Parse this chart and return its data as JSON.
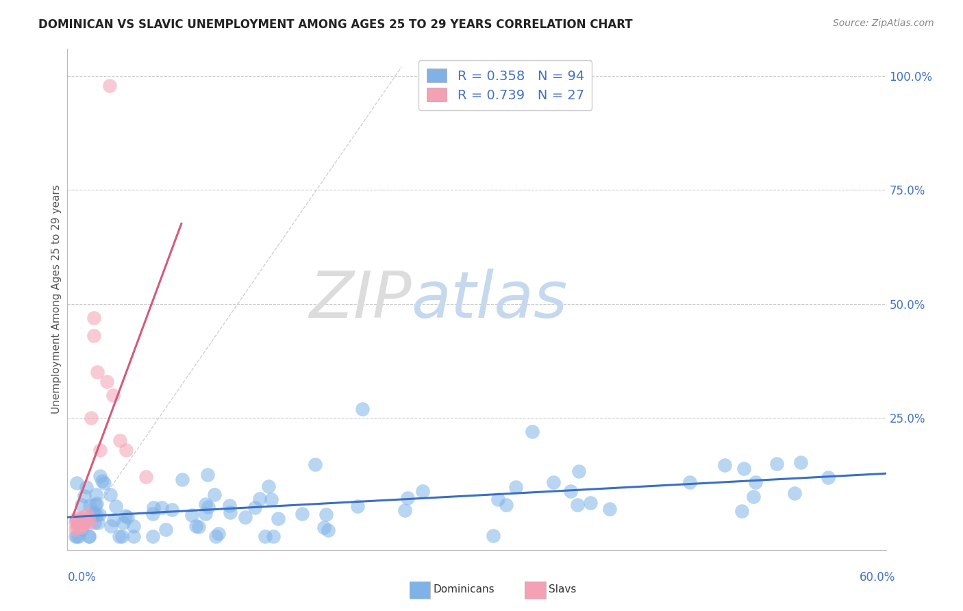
{
  "title": "DOMINICAN VS SLAVIC UNEMPLOYMENT AMONG AGES 25 TO 29 YEARS CORRELATION CHART",
  "source": "Source: ZipAtlas.com",
  "ylabel": "Unemployment Among Ages 25 to 29 years",
  "legend_labels": [
    "Dominicans",
    "Slavs"
  ],
  "watermark_part1": "ZIP",
  "watermark_part2": "atlas",
  "dot_color_blue": "#7FB3E8",
  "dot_color_pink": "#F4A0B5",
  "line_color_blue": "#3A6FC4",
  "line_color_pink": "#D45A7A",
  "diag_color": "#CCCCCC",
  "background_color": "#FFFFFF",
  "grid_color": "#CCCCCC",
  "title_fontsize": 12,
  "source_fontsize": 10,
  "ylabel_fontsize": 11,
  "watermark_color": "#D8E8F5",
  "watermark_color2": "#C8D8E8",
  "xlim": [
    -0.005,
    0.62
  ],
  "ylim": [
    -0.04,
    1.06
  ],
  "yticks": [
    0.0,
    0.25,
    0.5,
    0.75,
    1.0
  ],
  "ytick_labels": [
    "",
    "25.0%",
    "50.0%",
    "75.0%",
    "100.0%"
  ],
  "r_dominican": 0.358,
  "n_dominican": 94,
  "r_slav": 0.739,
  "n_slav": 27,
  "dom_blue_legend": "#7FB3E8",
  "slav_pink_legend": "#F4A0B5",
  "legend_text_color": "#4472C4",
  "legend_n_color": "#E05050"
}
